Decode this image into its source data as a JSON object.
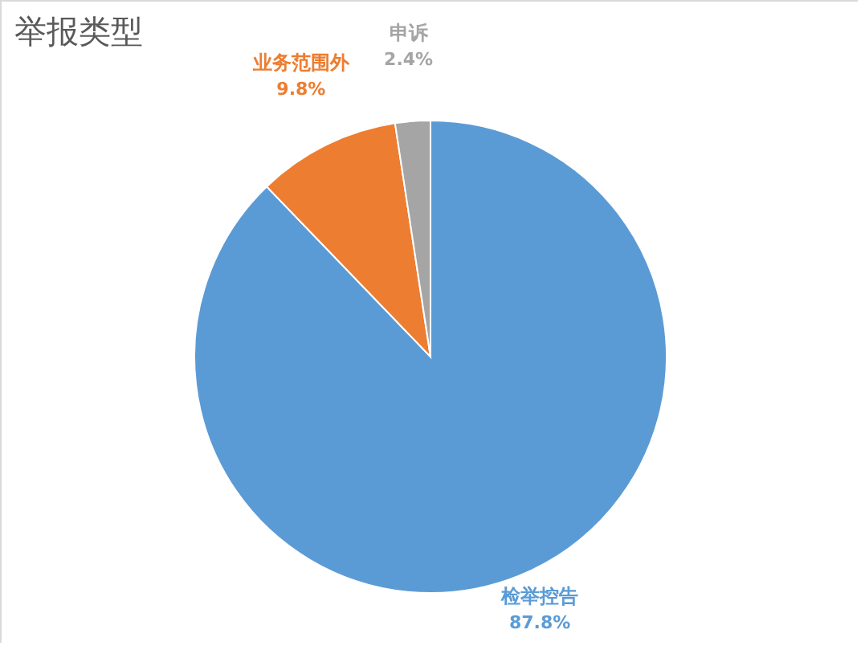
{
  "chart_data": {
    "type": "pie",
    "title": "举报类型",
    "categories": [
      "检举控告",
      "业务范围外",
      "申诉"
    ],
    "values": [
      87.8,
      9.8,
      2.4
    ],
    "colors": [
      "#5b9bd5",
      "#ed7d31",
      "#a5a5a5"
    ],
    "value_labels": [
      "87.8%",
      "9.8%",
      "2.4%"
    ]
  }
}
